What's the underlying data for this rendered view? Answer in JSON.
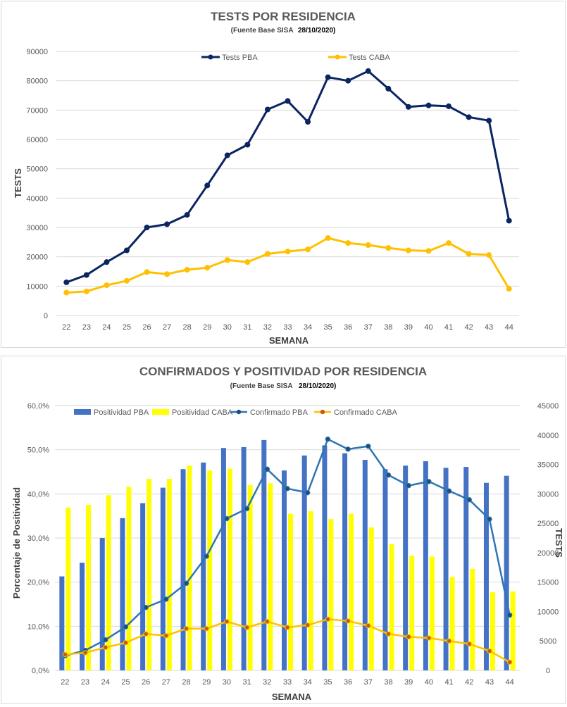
{
  "chart_data": [
    {
      "type": "line",
      "title": "TESTS POR RESIDENCIA",
      "subtitle": "(Fuente Base SISA",
      "subtitle_date": "28/10/2020)",
      "xlabel": "SEMANA",
      "ylabel": "TESTS",
      "ylim": [
        0,
        90000
      ],
      "yticks": [
        "0",
        "10000",
        "20000",
        "30000",
        "40000",
        "50000",
        "60000",
        "70000",
        "80000",
        "90000"
      ],
      "categories": [
        "22",
        "23",
        "24",
        "25",
        "26",
        "27",
        "28",
        "29",
        "30",
        "31",
        "32",
        "33",
        "34",
        "35",
        "36",
        "37",
        "38",
        "39",
        "40",
        "41",
        "42",
        "43",
        "44"
      ],
      "grid": true,
      "legend_position": "top",
      "series": [
        {
          "name": "Tests PBA",
          "color": "#0b2561",
          "values": [
            11300,
            13800,
            18200,
            22200,
            30000,
            31100,
            34300,
            44300,
            54600,
            58200,
            70200,
            73100,
            66000,
            81200,
            80000,
            83300,
            77300,
            71100,
            71600,
            71300,
            67600,
            66400,
            32300
          ]
        },
        {
          "name": "Tests CABA",
          "color": "#ffc000",
          "values": [
            7800,
            8200,
            10300,
            11800,
            14800,
            14100,
            15600,
            16300,
            18900,
            18200,
            21000,
            21800,
            22500,
            26400,
            24700,
            24000,
            23000,
            22200,
            22000,
            24700,
            21000,
            20600,
            9100
          ]
        }
      ]
    },
    {
      "type": "bar",
      "title": "CONFIRMADOS Y POSITIVIDAD POR RESIDENCIA",
      "subtitle": "(Fuente Base SISA",
      "subtitle_date": "28/10/2020)",
      "xlabel": "SEMANA",
      "ylabel": "Porcentaje de Positividad",
      "y2label": "TESTS",
      "ylim": [
        0,
        60
      ],
      "y2lim": [
        0,
        45000
      ],
      "yticks": [
        "0,0%",
        "10,0%",
        "20,0%",
        "30,0%",
        "40,0%",
        "50,0%",
        "60,0%"
      ],
      "y2ticks": [
        "0",
        "5000",
        "10000",
        "15000",
        "20000",
        "25000",
        "30000",
        "35000",
        "40000",
        "45000"
      ],
      "categories": [
        "22",
        "23",
        "24",
        "25",
        "26",
        "27",
        "28",
        "29",
        "30",
        "31",
        "32",
        "33",
        "34",
        "35",
        "36",
        "37",
        "38",
        "39",
        "40",
        "41",
        "42",
        "43",
        "44"
      ],
      "grid": true,
      "legend_position": "top",
      "series": [
        {
          "name": "Positividad PBA",
          "kind": "bar",
          "axis": "left",
          "color": "#4472c4",
          "values": [
            21.3,
            24.4,
            30.0,
            34.5,
            37.9,
            41.4,
            45.6,
            47.1,
            50.4,
            50.6,
            52.2,
            45.3,
            48.7,
            51.0,
            49.2,
            47.7,
            45.6,
            46.4,
            47.4,
            45.9,
            46.1,
            42.5,
            44.1
          ]
        },
        {
          "name": "Positividad CABA",
          "kind": "bar",
          "axis": "left",
          "color": "#ffff00",
          "values": [
            36.9,
            37.5,
            39.7,
            41.6,
            43.4,
            43.4,
            46.4,
            45.3,
            45.7,
            42.0,
            42.4,
            35.5,
            36.1,
            34.3,
            35.5,
            32.4,
            28.6,
            26.0,
            25.8,
            21.2,
            23.0,
            17.7,
            17.9
          ]
        },
        {
          "name": "Confirmado PBA",
          "kind": "line",
          "axis": "right",
          "color": "#2e75b6",
          "values": [
            2500,
            3400,
            5200,
            7400,
            10700,
            12100,
            14800,
            19400,
            25800,
            27500,
            34200,
            30900,
            30200,
            39300,
            37600,
            38100,
            33200,
            31400,
            32100,
            30500,
            29000,
            25700,
            9400
          ]
        },
        {
          "name": "Confirmado CABA",
          "kind": "line",
          "axis": "right",
          "color": "#ffc000",
          "values": [
            2700,
            3000,
            3900,
            4700,
            6200,
            5900,
            7100,
            7100,
            8300,
            7300,
            8300,
            7300,
            7700,
            8700,
            8400,
            7600,
            6200,
            5700,
            5500,
            5000,
            4500,
            3300,
            1400
          ]
        }
      ]
    }
  ]
}
